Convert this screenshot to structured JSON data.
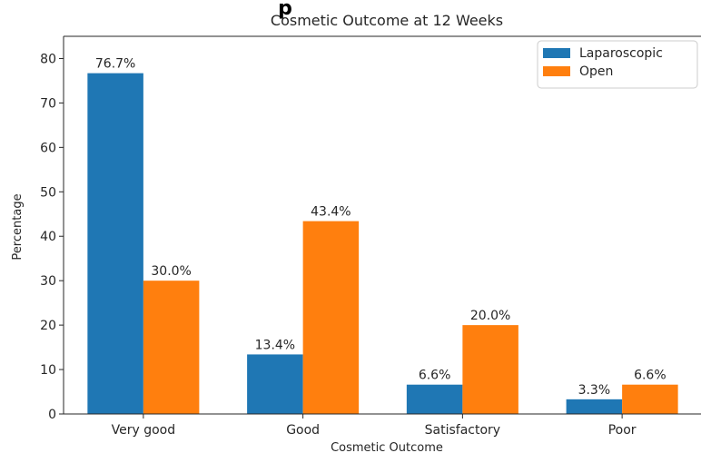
{
  "header": {
    "cut_title_fragment": "p"
  },
  "chart_data": {
    "type": "bar",
    "title": "Cosmetic Outcome at 12 Weeks",
    "xlabel": "Cosmetic Outcome",
    "ylabel": "Percentage",
    "categories": [
      "Very good",
      "Good",
      "Satisfactory",
      "Poor"
    ],
    "series": [
      {
        "name": "Laparoscopic",
        "color": "#1f77b4",
        "values": [
          76.7,
          13.4,
          6.6,
          3.3
        ],
        "labels": [
          "76.7%",
          "13.4%",
          "6.6%",
          "3.3%"
        ]
      },
      {
        "name": "Open",
        "color": "#ff7f0e",
        "values": [
          30.0,
          43.4,
          20.0,
          6.6
        ],
        "labels": [
          "30.0%",
          "43.4%",
          "20.0%",
          "6.6%"
        ]
      }
    ],
    "ylim": [
      0,
      85
    ],
    "yticks": [
      0,
      10,
      20,
      30,
      40,
      50,
      60,
      70,
      80
    ],
    "grid": false,
    "legend": "top-right"
  }
}
